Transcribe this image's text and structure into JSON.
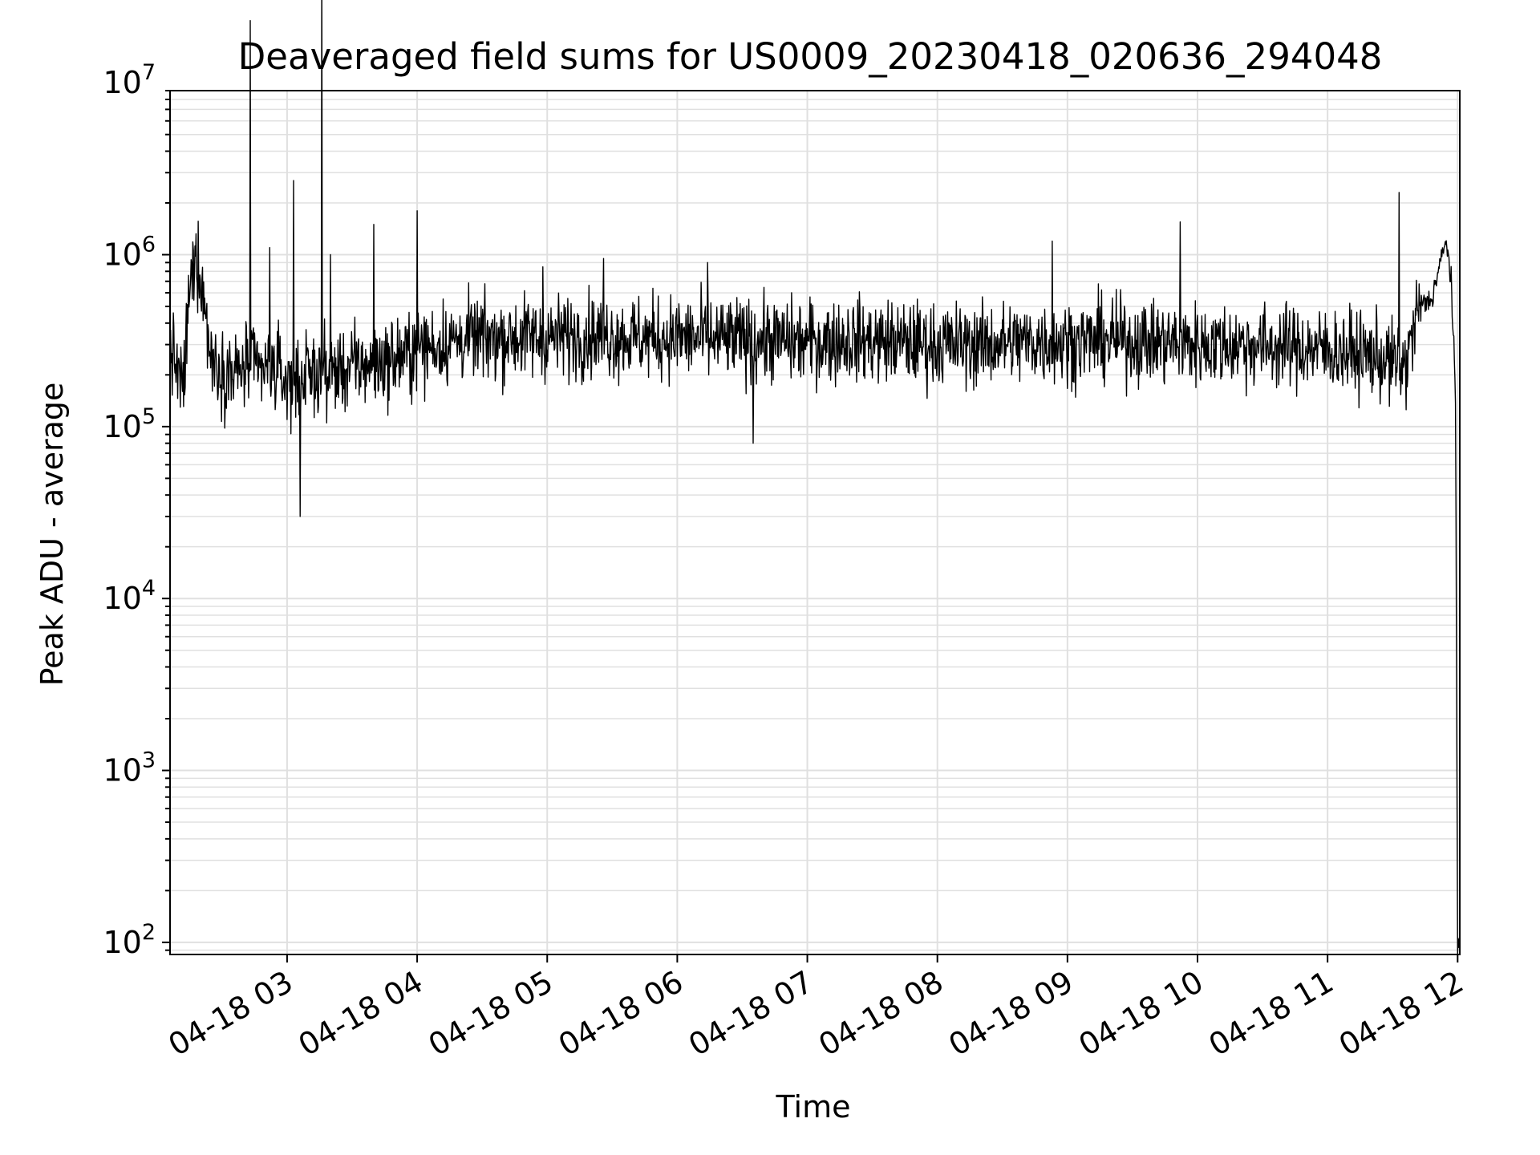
{
  "chart_data": {
    "type": "line",
    "title": "Deaveraged field sums for US0009_20230418_020636_294048",
    "xlabel": "Time",
    "ylabel": "Peak ADU - average",
    "yscale": "log",
    "grid": true,
    "grid_minor": true,
    "line_color": "#000000",
    "grid_color": "#e0e0e0",
    "xlim": [
      "2023-04-18 02:06",
      "2023-04-18 12:01"
    ],
    "ylim": [
      85,
      9000000
    ],
    "x_ticks": [
      {
        "label": "04-18 03",
        "value": "2023-04-18 03:00"
      },
      {
        "label": "04-18 04",
        "value": "2023-04-18 04:00"
      },
      {
        "label": "04-18 05",
        "value": "2023-04-18 05:00"
      },
      {
        "label": "04-18 06",
        "value": "2023-04-18 06:00"
      },
      {
        "label": "04-18 07",
        "value": "2023-04-18 07:00"
      },
      {
        "label": "04-18 08",
        "value": "2023-04-18 08:00"
      },
      {
        "label": "04-18 09",
        "value": "2023-04-18 09:00"
      },
      {
        "label": "04-18 10",
        "value": "2023-04-18 10:00"
      },
      {
        "label": "04-18 11",
        "value": "2023-04-18 11:00"
      },
      {
        "label": "04-18 12",
        "value": "2023-04-18 12:00"
      }
    ],
    "y_ticks": [
      {
        "base": "10",
        "exp": "2",
        "value": 100
      },
      {
        "base": "10",
        "exp": "3",
        "value": 1000
      },
      {
        "base": "10",
        "exp": "4",
        "value": 10000
      },
      {
        "base": "10",
        "exp": "5",
        "value": 100000
      },
      {
        "base": "10",
        "exp": "6",
        "value": 1000000
      },
      {
        "base": "10",
        "exp": "7",
        "value": 10000000
      }
    ],
    "series": [
      {
        "x": [
          "2023-04-18 02:06",
          "2023-04-18 02:12",
          "2023-04-18 02:15",
          "2023-04-18 02:18",
          "2023-04-18 02:20",
          "2023-04-18 02:25",
          "2023-04-18 02:30",
          "2023-04-18 02:36",
          "2023-04-18 02:42",
          "2023-04-18 02:48",
          "2023-04-18 02:54",
          "2023-04-18 03:00",
          "2023-04-18 03:05",
          "2023-04-18 03:12",
          "2023-04-18 03:24",
          "2023-04-18 03:36",
          "2023-04-18 03:48",
          "2023-04-18 04:00",
          "2023-04-18 04:20",
          "2023-04-18 04:40",
          "2023-04-18 05:00",
          "2023-04-18 05:20",
          "2023-04-18 05:40",
          "2023-04-18 06:00",
          "2023-04-18 06:20",
          "2023-04-18 06:40",
          "2023-04-18 07:00",
          "2023-04-18 07:20",
          "2023-04-18 07:40",
          "2023-04-18 08:00",
          "2023-04-18 08:20",
          "2023-04-18 08:40",
          "2023-04-18 09:00",
          "2023-04-18 09:20",
          "2023-04-18 09:40",
          "2023-04-18 10:00",
          "2023-04-18 10:20",
          "2023-04-18 10:40",
          "2023-04-18 11:00",
          "2023-04-18 11:20",
          "2023-04-18 11:36",
          "2023-04-18 11:42",
          "2023-04-18 11:48",
          "2023-04-18 11:52",
          "2023-04-18 11:55",
          "2023-04-18 11:57",
          "2023-04-18 11:59",
          "2023-04-18 12:00"
        ],
        "y": [
          300000,
          160000,
          600000,
          1000000,
          800000,
          250000,
          220000,
          200000,
          230000,
          210000,
          220000,
          180000,
          190000,
          200000,
          210000,
          230000,
          240000,
          280000,
          320000,
          330000,
          330000,
          340000,
          330000,
          330000,
          320000,
          320000,
          310000,
          320000,
          310000,
          300000,
          300000,
          310000,
          310000,
          320000,
          310000,
          300000,
          300000,
          290000,
          280000,
          260000,
          220000,
          500000,
          550000,
          900000,
          1200000,
          700000,
          150000,
          100
        ],
        "spikes": [
          {
            "x": "2023-04-18 02:43",
            "y": 23000000
          },
          {
            "x": "2023-04-18 02:52",
            "y": 1100000
          },
          {
            "x": "2023-04-18 03:03",
            "y": 2700000
          },
          {
            "x": "2023-04-18 03:06",
            "y": 30000
          },
          {
            "x": "2023-04-18 03:16",
            "y": 50000000
          },
          {
            "x": "2023-04-18 03:20",
            "y": 1000000
          },
          {
            "x": "2023-04-18 03:40",
            "y": 1500000
          },
          {
            "x": "2023-04-18 04:00",
            "y": 1800000
          },
          {
            "x": "2023-04-18 04:58",
            "y": 850000
          },
          {
            "x": "2023-04-18 05:26",
            "y": 950000
          },
          {
            "x": "2023-04-18 06:14",
            "y": 900000
          },
          {
            "x": "2023-04-18 06:35",
            "y": 80000
          },
          {
            "x": "2023-04-18 08:53",
            "y": 1200000
          },
          {
            "x": "2023-04-18 09:52",
            "y": 1550000
          },
          {
            "x": "2023-04-18 11:33",
            "y": 2300000
          }
        ]
      }
    ]
  }
}
